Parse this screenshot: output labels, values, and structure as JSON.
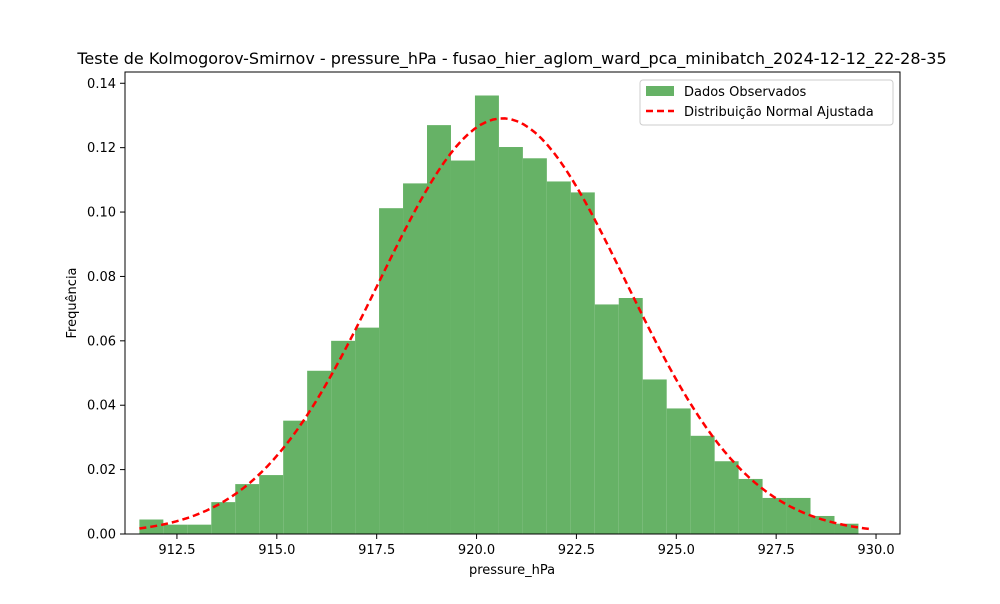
{
  "chart_data": {
    "type": "bar",
    "title": "Teste de Kolmogorov-Smirnov - pressure_hPa - fusao_hier_aglom_ward_pca_minibatch_2024-12-12_22-28-35",
    "xlabel": "pressure_hPa",
    "ylabel": "Frequência",
    "xlim": [
      911.2,
      930.6
    ],
    "ylim": [
      0,
      0.1435
    ],
    "xticks": [
      912.5,
      915.0,
      917.5,
      920.0,
      922.5,
      925.0,
      927.5,
      930.0
    ],
    "xtick_labels": [
      "912.5",
      "915.0",
      "917.5",
      "920.0",
      "922.5",
      "925.0",
      "927.5",
      "930.0"
    ],
    "yticks": [
      0.0,
      0.02,
      0.04,
      0.06,
      0.08,
      0.1,
      0.12,
      0.14
    ],
    "ytick_labels": [
      "0.00",
      "0.02",
      "0.04",
      "0.06",
      "0.08",
      "0.10",
      "0.12",
      "0.14"
    ],
    "legend_position": "top-right",
    "grid": false,
    "series": [
      {
        "name": "Dados Observados",
        "kind": "histogram",
        "color": "#66b266",
        "edge_color": "#2ca02c",
        "bin_edges": [
          911.56,
          912.16,
          912.76,
          913.36,
          913.96,
          914.56,
          915.16,
          915.76,
          916.36,
          916.96,
          917.56,
          918.16,
          918.76,
          919.36,
          919.96,
          920.56,
          921.16,
          921.76,
          922.36,
          922.96,
          923.56,
          924.16,
          924.76,
          925.36,
          925.96,
          926.56,
          927.16,
          927.76,
          928.36,
          928.96,
          929.56
        ],
        "values": [
          0.0045,
          0.0029,
          0.0029,
          0.0099,
          0.0155,
          0.0183,
          0.0352,
          0.0507,
          0.06,
          0.0641,
          0.1012,
          0.1089,
          0.127,
          0.116,
          0.1362,
          0.1202,
          0.1167,
          0.1095,
          0.1061,
          0.0713,
          0.0733,
          0.048,
          0.039,
          0.0305,
          0.0226,
          0.0171,
          0.0112,
          0.0112,
          0.0056,
          0.0032
        ]
      },
      {
        "name": "Distribuição Normal Ajustada",
        "kind": "line",
        "color": "#ff0000",
        "dash": "dashed",
        "mean": 920.65,
        "std": 3.09,
        "x_range": [
          911.56,
          929.86
        ]
      }
    ]
  }
}
